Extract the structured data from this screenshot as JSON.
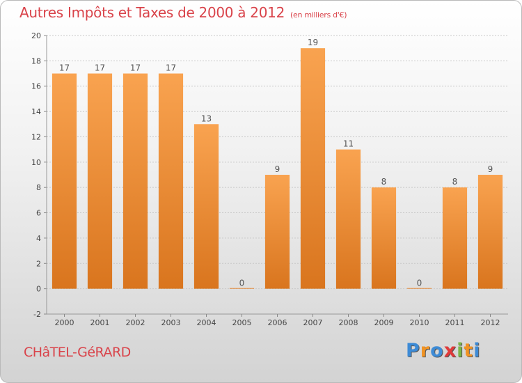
{
  "chart_data": {
    "type": "bar",
    "title": "Autres Impôts et Taxes de 2000 à 2012",
    "unit": "(en milliers d'€)",
    "categories": [
      "2000",
      "2001",
      "2002",
      "2003",
      "2004",
      "2005",
      "2006",
      "2007",
      "2008",
      "2009",
      "2010",
      "2011",
      "2012"
    ],
    "values": [
      17,
      17,
      17,
      17,
      13,
      0,
      9,
      19,
      11,
      8,
      0,
      8,
      9
    ],
    "value_labels": [
      "17",
      "17",
      "17",
      "17",
      "13",
      "0",
      "9",
      "19",
      "11",
      "8",
      "0",
      "8",
      "9"
    ],
    "yticks": [
      "-2",
      "0",
      "2",
      "4",
      "6",
      "8",
      "10",
      "12",
      "14",
      "16",
      "18",
      "20"
    ],
    "ylim": [
      -2,
      20
    ],
    "grid": "horizontal dashed",
    "bar_color_top": "#f9a350",
    "bar_color_bottom": "#d9751e",
    "xlabel": "",
    "ylabel": ""
  },
  "footer": {
    "commune": "CHâTEL-GéRARD",
    "logo": [
      "P",
      "r",
      "o",
      "x",
      "i",
      "t",
      "i"
    ],
    "logo_colors": [
      "#3d8bd6",
      "#f19323",
      "#3d8bd6",
      "#e03a3a",
      "#7ab648",
      "#f19323",
      "#3d8bd6"
    ]
  }
}
